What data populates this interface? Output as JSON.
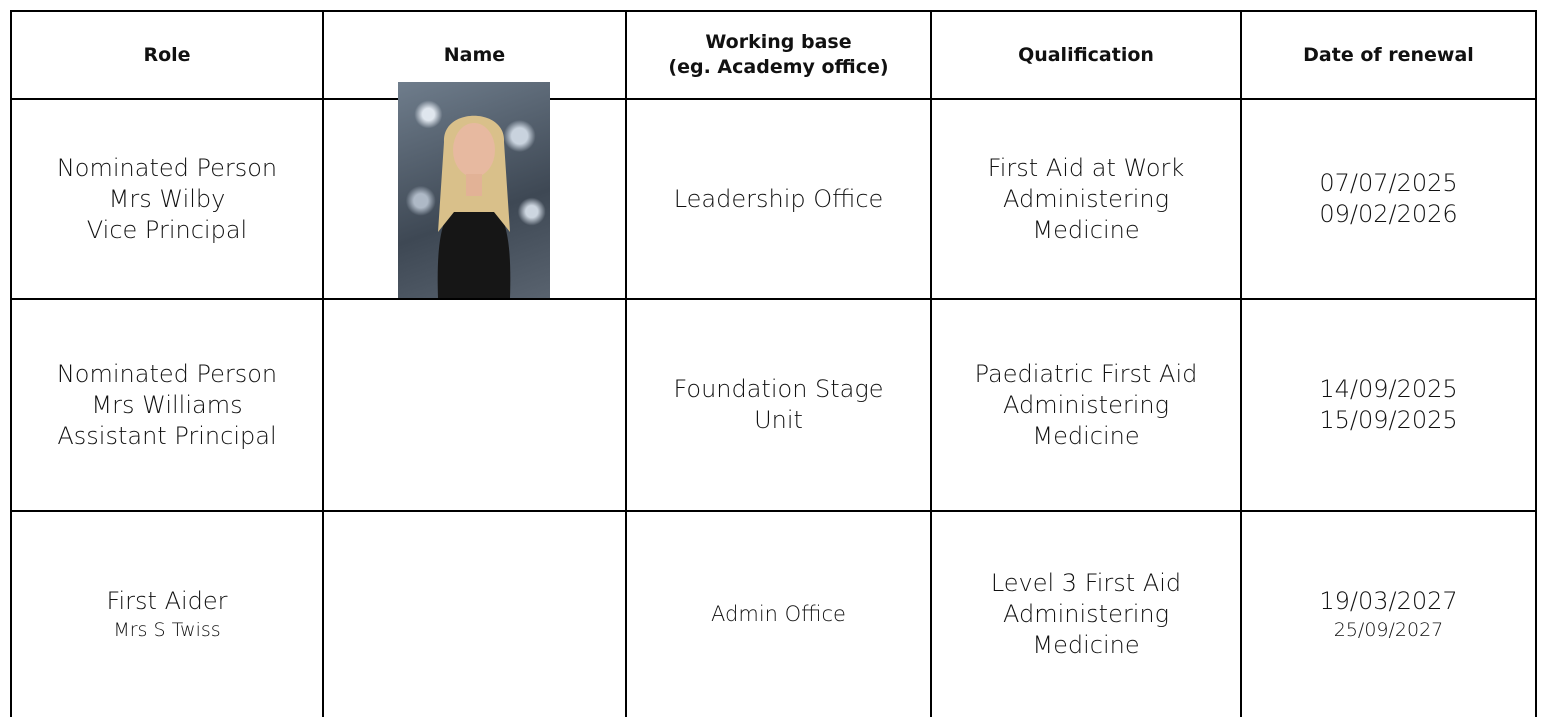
{
  "table": {
    "headers": [
      [
        "Role"
      ],
      [
        "Name"
      ],
      [
        "Working base",
        "(eg. Academy office)"
      ],
      [
        "Qualification"
      ],
      [
        "Date of renewal"
      ]
    ],
    "rows": [
      [
        [
          "Nominated Person",
          "Mrs Wilby",
          "Vice Principal"
        ],
        [],
        [
          "Leadership Office"
        ],
        [
          "First Aid at Work",
          "Administering",
          "Medicine"
        ],
        [
          "07/07/2025",
          "09/02/2026"
        ]
      ],
      [
        [
          "Nominated Person",
          "Mrs Williams",
          "Assistant Principal"
        ],
        [],
        [
          "Foundation Stage",
          "Unit"
        ],
        [
          "Paediatric First Aid",
          "Administering",
          "Medicine"
        ],
        [
          "14/09/2025",
          "15/09/2025"
        ]
      ],
      [
        [
          "First Aider",
          "Mrs S Twiss"
        ],
        [],
        [
          "Admin Office"
        ],
        [
          "Level 3 First Aid",
          "Administering",
          "Medicine"
        ],
        [
          "19/03/2027",
          "25/09/2027"
        ]
      ]
    ]
  }
}
